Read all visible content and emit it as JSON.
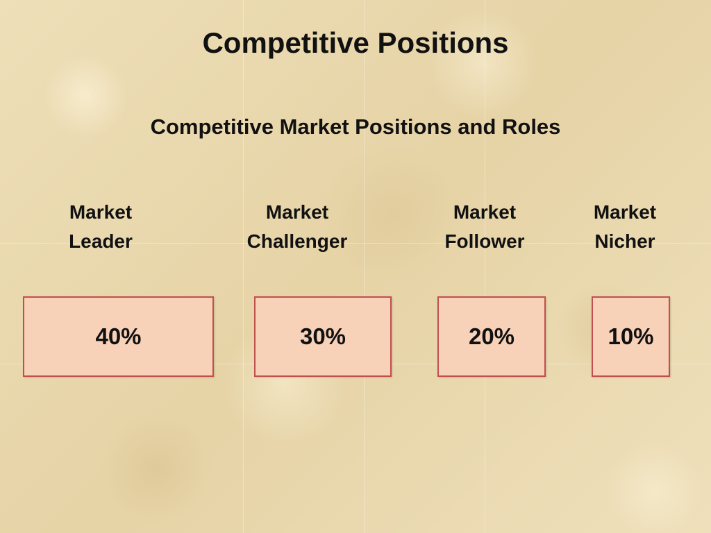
{
  "slide": {
    "title": "Competitive Positions",
    "subtitle": "Competitive Market Positions and Roles"
  },
  "positions": [
    {
      "label_line1": "Market",
      "label_line2": "Leader",
      "share": "40%"
    },
    {
      "label_line1": "Market",
      "label_line2": "Challenger",
      "share": "30%"
    },
    {
      "label_line1": "Market",
      "label_line2": "Follower",
      "share": "20%"
    },
    {
      "label_line1": "Market",
      "label_line2": "Nicher",
      "share": "10%"
    }
  ],
  "colors": {
    "box_fill": "#f7d1b8",
    "box_border": "#c0504d",
    "background": "#ecdcb4"
  }
}
